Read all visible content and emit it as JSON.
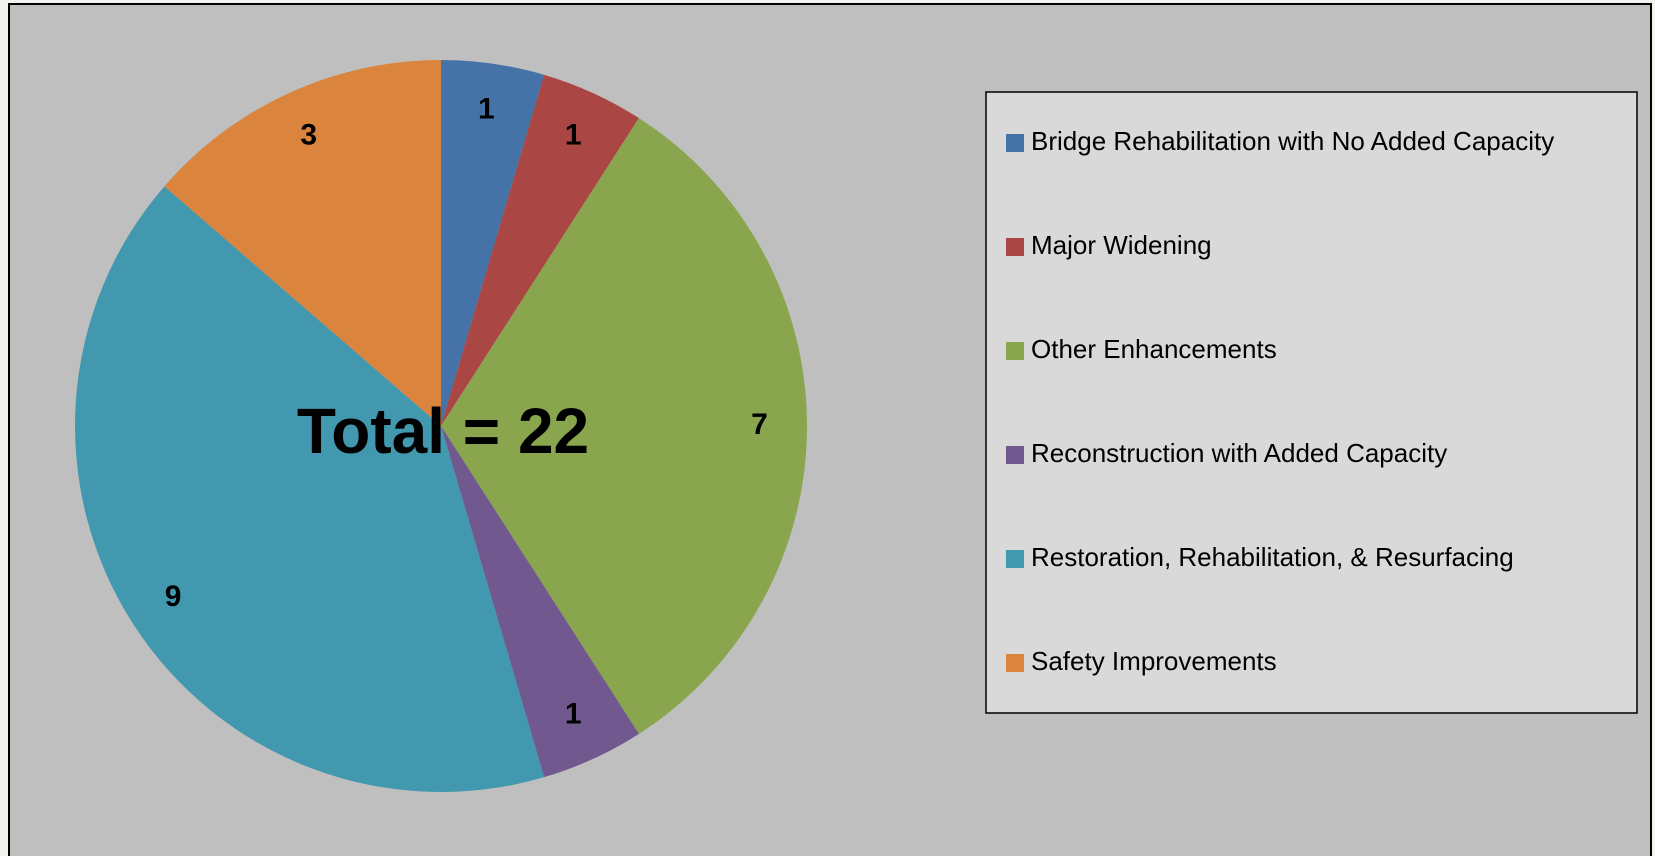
{
  "chart_data": {
    "type": "pie",
    "annotation": "Total = 22",
    "categories": [
      "Bridge Rehabilitation with No Added Capacity",
      "Major Widening",
      "Other Enhancements",
      "Reconstruction with Added Capacity",
      "Restoration, Rehabilitation, & Resurfacing",
      "Safety Improvements"
    ],
    "values": [
      1,
      1,
      7,
      1,
      9,
      3
    ],
    "colors": [
      "#4572a7",
      "#aa4643",
      "#89a54e",
      "#71588f",
      "#4198af",
      "#db843d"
    ],
    "legend": "right"
  }
}
